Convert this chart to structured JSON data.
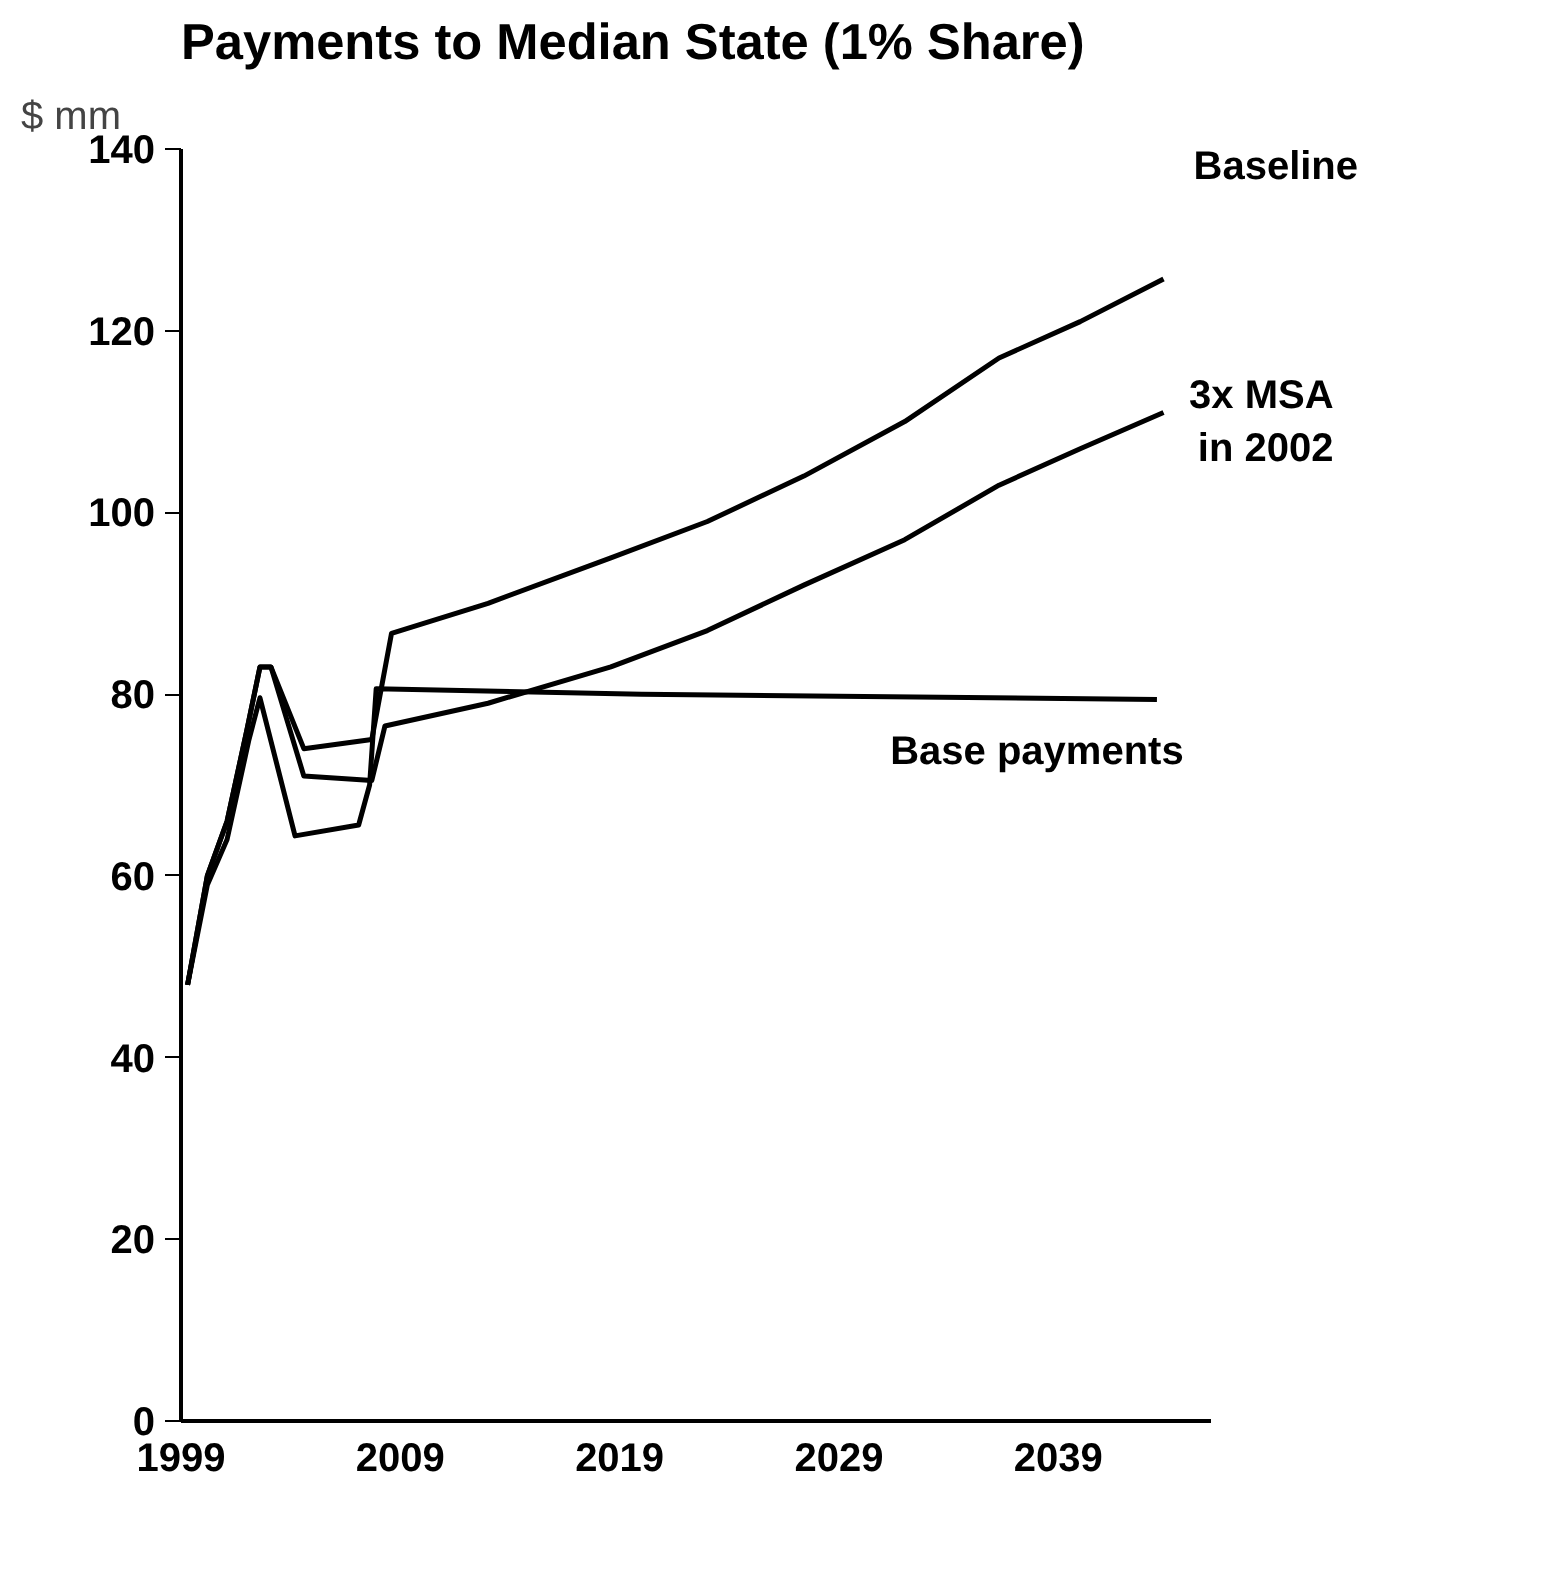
{
  "chart_data": {
    "type": "line",
    "title": "Payments to Median State (1% Share)",
    "ylabel": "$ mm",
    "xlim": [
      1999,
      2046
    ],
    "xticks": [
      1999,
      2009,
      2019,
      2029,
      2039
    ],
    "ylim": [
      0,
      140
    ],
    "yticks": [
      0,
      20,
      40,
      60,
      80,
      100,
      120,
      140
    ],
    "grid": false,
    "marker": "none",
    "line_style": "solid",
    "series": [
      {
        "name": "Baseline",
        "color": "#000000",
        "x": [
          1999.3,
          2000.2,
          2001.1,
          2002.0,
          2002.6,
          2003.1,
          2004.6,
          2007.7,
          2008.6,
          2013.0,
          2018.6,
          2023.0,
          2027.4,
          2032.0,
          2036.3,
          2040.0,
          2043.8
        ],
        "values": [
          48,
          60,
          66,
          76,
          83,
          83,
          74,
          75,
          86.7,
          90,
          95,
          99,
          104,
          110,
          117,
          121,
          125.7
        ]
      },
      {
        "name": "3x MSA\nin 2002",
        "color": "#000000",
        "x": [
          1999.3,
          2000.2,
          2001.1,
          2002.0,
          2002.6,
          2003.1,
          2004.6,
          2007.7,
          2008.3,
          2013.0,
          2018.6,
          2023.0,
          2027.4,
          2032.0,
          2036.3,
          2040.0,
          2043.8
        ],
        "values": [
          48,
          60,
          66,
          76,
          83,
          83,
          71,
          70.5,
          76.5,
          79,
          83,
          87,
          92,
          97,
          103,
          107,
          111
        ]
      },
      {
        "name": "Base payments",
        "color": "#000000",
        "x": [
          1999.3,
          2000.2,
          2001.1,
          2002.1,
          2002.6,
          2004.2,
          2007.1,
          2007.6,
          2007.9,
          2020.0,
          2043.5
        ],
        "values": [
          48,
          59,
          64,
          75,
          79.6,
          64.4,
          65.6,
          70,
          80.6,
          80,
          79.4
        ]
      }
    ]
  }
}
